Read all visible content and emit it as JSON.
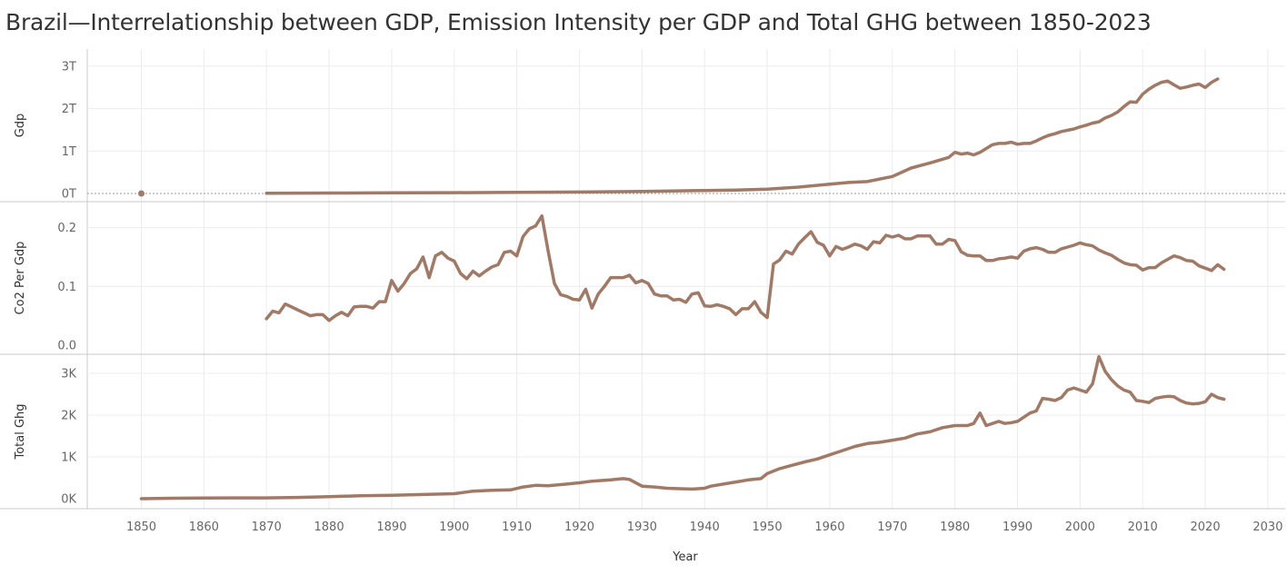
{
  "title": "Brazil—Interrelationship between GDP, Emission Intensity per GDP and Total GHG between 1850-2023",
  "colors": {
    "line": "#a07a67",
    "grid": "#ececec",
    "border": "#c8c8c8",
    "zero": "#999999"
  },
  "chart_data": {
    "type": "line",
    "xlabel": "Year",
    "x_ticks": [
      "1850",
      "1860",
      "1870",
      "1880",
      "1890",
      "1900",
      "1910",
      "1920",
      "1930",
      "1940",
      "1950",
      "1960",
      "1970",
      "1980",
      "1990",
      "2000",
      "2010",
      "2020",
      "2030"
    ],
    "panels": [
      {
        "ylabel": "Gdp",
        "y_ticks": [
          "0T",
          "1T",
          "2T",
          "3T"
        ],
        "ylim": [
          0,
          3.3
        ],
        "unit": "trillion",
        "points": [
          [
            1850,
            0
          ],
          [
            1870,
            0.005
          ],
          [
            1880,
            0.01
          ],
          [
            1890,
            0.015
          ],
          [
            1900,
            0.02
          ],
          [
            1910,
            0.025
          ],
          [
            1920,
            0.035
          ],
          [
            1930,
            0.05
          ],
          [
            1940,
            0.07
          ],
          [
            1945,
            0.08
          ],
          [
            1950,
            0.1
          ],
          [
            1955,
            0.15
          ],
          [
            1960,
            0.22
          ],
          [
            1963,
            0.26
          ],
          [
            1966,
            0.28
          ],
          [
            1970,
            0.4
          ],
          [
            1973,
            0.6
          ],
          [
            1976,
            0.72
          ],
          [
            1979,
            0.85
          ],
          [
            1980,
            0.97
          ],
          [
            1981,
            0.93
          ],
          [
            1982,
            0.95
          ],
          [
            1983,
            0.91
          ],
          [
            1984,
            0.97
          ],
          [
            1985,
            1.06
          ],
          [
            1986,
            1.15
          ],
          [
            1987,
            1.18
          ],
          [
            1988,
            1.18
          ],
          [
            1989,
            1.21
          ],
          [
            1990,
            1.16
          ],
          [
            1991,
            1.18
          ],
          [
            1992,
            1.18
          ],
          [
            1993,
            1.24
          ],
          [
            1994,
            1.31
          ],
          [
            1995,
            1.37
          ],
          [
            1996,
            1.41
          ],
          [
            1997,
            1.46
          ],
          [
            1998,
            1.49
          ],
          [
            1999,
            1.52
          ],
          [
            2000,
            1.57
          ],
          [
            2001,
            1.61
          ],
          [
            2002,
            1.66
          ],
          [
            2003,
            1.69
          ],
          [
            2004,
            1.78
          ],
          [
            2005,
            1.84
          ],
          [
            2006,
            1.92
          ],
          [
            2007,
            2.05
          ],
          [
            2008,
            2.16
          ],
          [
            2009,
            2.15
          ],
          [
            2010,
            2.34
          ],
          [
            2011,
            2.46
          ],
          [
            2012,
            2.55
          ],
          [
            2013,
            2.62
          ],
          [
            2014,
            2.65
          ],
          [
            2015,
            2.56
          ],
          [
            2016,
            2.48
          ],
          [
            2017,
            2.51
          ],
          [
            2018,
            2.55
          ],
          [
            2019,
            2.58
          ],
          [
            2020,
            2.5
          ],
          [
            2021,
            2.62
          ],
          [
            2022,
            2.7
          ]
        ]
      },
      {
        "ylabel": "Co2 Per Gdp",
        "y_ticks": [
          "0.0",
          "0.1",
          "0.2"
        ],
        "ylim": [
          0,
          0.235
        ],
        "points": [
          [
            1870,
            0.045
          ],
          [
            1871,
            0.058
          ],
          [
            1872,
            0.055
          ],
          [
            1873,
            0.07
          ],
          [
            1874,
            0.065
          ],
          [
            1875,
            0.06
          ],
          [
            1876,
            0.055
          ],
          [
            1877,
            0.05
          ],
          [
            1878,
            0.052
          ],
          [
            1879,
            0.052
          ],
          [
            1880,
            0.042
          ],
          [
            1881,
            0.05
          ],
          [
            1882,
            0.056
          ],
          [
            1883,
            0.05
          ],
          [
            1884,
            0.065
          ],
          [
            1885,
            0.066
          ],
          [
            1886,
            0.066
          ],
          [
            1887,
            0.063
          ],
          [
            1888,
            0.074
          ],
          [
            1889,
            0.074
          ],
          [
            1890,
            0.11
          ],
          [
            1891,
            0.092
          ],
          [
            1892,
            0.105
          ],
          [
            1893,
            0.122
          ],
          [
            1894,
            0.13
          ],
          [
            1895,
            0.15
          ],
          [
            1896,
            0.115
          ],
          [
            1897,
            0.152
          ],
          [
            1898,
            0.158
          ],
          [
            1899,
            0.148
          ],
          [
            1900,
            0.143
          ],
          [
            1901,
            0.122
          ],
          [
            1902,
            0.113
          ],
          [
            1903,
            0.126
          ],
          [
            1904,
            0.118
          ],
          [
            1905,
            0.126
          ],
          [
            1906,
            0.133
          ],
          [
            1907,
            0.137
          ],
          [
            1908,
            0.158
          ],
          [
            1909,
            0.16
          ],
          [
            1910,
            0.152
          ],
          [
            1911,
            0.185
          ],
          [
            1912,
            0.198
          ],
          [
            1913,
            0.203
          ],
          [
            1914,
            0.22
          ],
          [
            1915,
            0.16
          ],
          [
            1916,
            0.105
          ],
          [
            1917,
            0.086
          ],
          [
            1918,
            0.083
          ],
          [
            1919,
            0.078
          ],
          [
            1920,
            0.077
          ],
          [
            1921,
            0.095
          ],
          [
            1922,
            0.063
          ],
          [
            1923,
            0.087
          ],
          [
            1924,
            0.1
          ],
          [
            1925,
            0.115
          ],
          [
            1926,
            0.115
          ],
          [
            1927,
            0.115
          ],
          [
            1928,
            0.119
          ],
          [
            1929,
            0.106
          ],
          [
            1930,
            0.11
          ],
          [
            1931,
            0.105
          ],
          [
            1932,
            0.087
          ],
          [
            1933,
            0.084
          ],
          [
            1934,
            0.084
          ],
          [
            1935,
            0.077
          ],
          [
            1936,
            0.078
          ],
          [
            1937,
            0.073
          ],
          [
            1938,
            0.087
          ],
          [
            1939,
            0.089
          ],
          [
            1940,
            0.067
          ],
          [
            1941,
            0.066
          ],
          [
            1942,
            0.069
          ],
          [
            1943,
            0.066
          ],
          [
            1944,
            0.062
          ],
          [
            1945,
            0.052
          ],
          [
            1946,
            0.062
          ],
          [
            1947,
            0.062
          ],
          [
            1948,
            0.074
          ],
          [
            1949,
            0.056
          ],
          [
            1950,
            0.047
          ],
          [
            1951,
            0.138
          ],
          [
            1952,
            0.145
          ],
          [
            1953,
            0.16
          ],
          [
            1954,
            0.155
          ],
          [
            1955,
            0.172
          ],
          [
            1956,
            0.183
          ],
          [
            1957,
            0.193
          ],
          [
            1958,
            0.175
          ],
          [
            1959,
            0.17
          ],
          [
            1960,
            0.152
          ],
          [
            1961,
            0.168
          ],
          [
            1962,
            0.163
          ],
          [
            1963,
            0.167
          ],
          [
            1964,
            0.172
          ],
          [
            1965,
            0.169
          ],
          [
            1966,
            0.163
          ],
          [
            1967,
            0.176
          ],
          [
            1968,
            0.174
          ],
          [
            1969,
            0.187
          ],
          [
            1970,
            0.184
          ],
          [
            1971,
            0.187
          ],
          [
            1972,
            0.181
          ],
          [
            1973,
            0.181
          ],
          [
            1974,
            0.186
          ],
          [
            1975,
            0.186
          ],
          [
            1976,
            0.186
          ],
          [
            1977,
            0.172
          ],
          [
            1978,
            0.172
          ],
          [
            1979,
            0.18
          ],
          [
            1980,
            0.178
          ],
          [
            1981,
            0.159
          ],
          [
            1982,
            0.153
          ],
          [
            1983,
            0.152
          ],
          [
            1984,
            0.152
          ],
          [
            1985,
            0.144
          ],
          [
            1986,
            0.144
          ],
          [
            1987,
            0.147
          ],
          [
            1988,
            0.148
          ],
          [
            1989,
            0.15
          ],
          [
            1990,
            0.148
          ],
          [
            1991,
            0.16
          ],
          [
            1992,
            0.164
          ],
          [
            1993,
            0.166
          ],
          [
            1994,
            0.163
          ],
          [
            1995,
            0.158
          ],
          [
            1996,
            0.158
          ],
          [
            1997,
            0.164
          ],
          [
            1998,
            0.167
          ],
          [
            1999,
            0.17
          ],
          [
            2000,
            0.174
          ],
          [
            2001,
            0.171
          ],
          [
            2002,
            0.169
          ],
          [
            2003,
            0.162
          ],
          [
            2004,
            0.157
          ],
          [
            2005,
            0.153
          ],
          [
            2006,
            0.146
          ],
          [
            2007,
            0.14
          ],
          [
            2008,
            0.137
          ],
          [
            2009,
            0.136
          ],
          [
            2010,
            0.128
          ],
          [
            2011,
            0.132
          ],
          [
            2012,
            0.132
          ],
          [
            2013,
            0.14
          ],
          [
            2014,
            0.146
          ],
          [
            2015,
            0.152
          ],
          [
            2016,
            0.149
          ],
          [
            2017,
            0.144
          ],
          [
            2018,
            0.143
          ],
          [
            2019,
            0.135
          ],
          [
            2020,
            0.131
          ],
          [
            2021,
            0.127
          ],
          [
            2022,
            0.137
          ],
          [
            2023,
            0.129
          ]
        ]
      },
      {
        "ylabel": "Total Ghg",
        "y_ticks": [
          "0K",
          "1K",
          "2K",
          "3K"
        ],
        "ylim": [
          -50,
          3500
        ],
        "unit": "thousand",
        "points": [
          [
            1850,
            0
          ],
          [
            1855,
            10
          ],
          [
            1860,
            15
          ],
          [
            1865,
            20
          ],
          [
            1870,
            20
          ],
          [
            1875,
            30
          ],
          [
            1880,
            50
          ],
          [
            1885,
            70
          ],
          [
            1890,
            80
          ],
          [
            1895,
            100
          ],
          [
            1900,
            120
          ],
          [
            1903,
            180
          ],
          [
            1906,
            200
          ],
          [
            1909,
            210
          ],
          [
            1911,
            280
          ],
          [
            1913,
            320
          ],
          [
            1915,
            310
          ],
          [
            1918,
            350
          ],
          [
            1920,
            380
          ],
          [
            1922,
            420
          ],
          [
            1925,
            450
          ],
          [
            1927,
            480
          ],
          [
            1928,
            460
          ],
          [
            1930,
            300
          ],
          [
            1932,
            280
          ],
          [
            1934,
            250
          ],
          [
            1936,
            240
          ],
          [
            1938,
            230
          ],
          [
            1940,
            250
          ],
          [
            1941,
            300
          ],
          [
            1943,
            350
          ],
          [
            1945,
            400
          ],
          [
            1947,
            450
          ],
          [
            1949,
            480
          ],
          [
            1950,
            600
          ],
          [
            1952,
            720
          ],
          [
            1954,
            800
          ],
          [
            1956,
            880
          ],
          [
            1958,
            950
          ],
          [
            1960,
            1050
          ],
          [
            1962,
            1150
          ],
          [
            1964,
            1250
          ],
          [
            1966,
            1320
          ],
          [
            1968,
            1350
          ],
          [
            1970,
            1400
          ],
          [
            1972,
            1450
          ],
          [
            1974,
            1550
          ],
          [
            1976,
            1600
          ],
          [
            1978,
            1700
          ],
          [
            1980,
            1750
          ],
          [
            1982,
            1750
          ],
          [
            1983,
            1800
          ],
          [
            1984,
            2050
          ],
          [
            1985,
            1750
          ],
          [
            1986,
            1800
          ],
          [
            1987,
            1850
          ],
          [
            1988,
            1800
          ],
          [
            1989,
            1820
          ],
          [
            1990,
            1850
          ],
          [
            1992,
            2050
          ],
          [
            1993,
            2100
          ],
          [
            1994,
            2400
          ],
          [
            1995,
            2380
          ],
          [
            1996,
            2350
          ],
          [
            1997,
            2420
          ],
          [
            1998,
            2600
          ],
          [
            1999,
            2650
          ],
          [
            2000,
            2600
          ],
          [
            2001,
            2550
          ],
          [
            2002,
            2750
          ],
          [
            2003,
            3400
          ],
          [
            2004,
            3050
          ],
          [
            2005,
            2850
          ],
          [
            2006,
            2700
          ],
          [
            2007,
            2600
          ],
          [
            2008,
            2550
          ],
          [
            2009,
            2350
          ],
          [
            2010,
            2330
          ],
          [
            2011,
            2300
          ],
          [
            2012,
            2400
          ],
          [
            2013,
            2430
          ],
          [
            2014,
            2450
          ],
          [
            2015,
            2440
          ],
          [
            2016,
            2350
          ],
          [
            2017,
            2290
          ],
          [
            2018,
            2270
          ],
          [
            2019,
            2280
          ],
          [
            2020,
            2320
          ],
          [
            2021,
            2500
          ],
          [
            2022,
            2420
          ],
          [
            2023,
            2380
          ]
        ]
      }
    ]
  }
}
